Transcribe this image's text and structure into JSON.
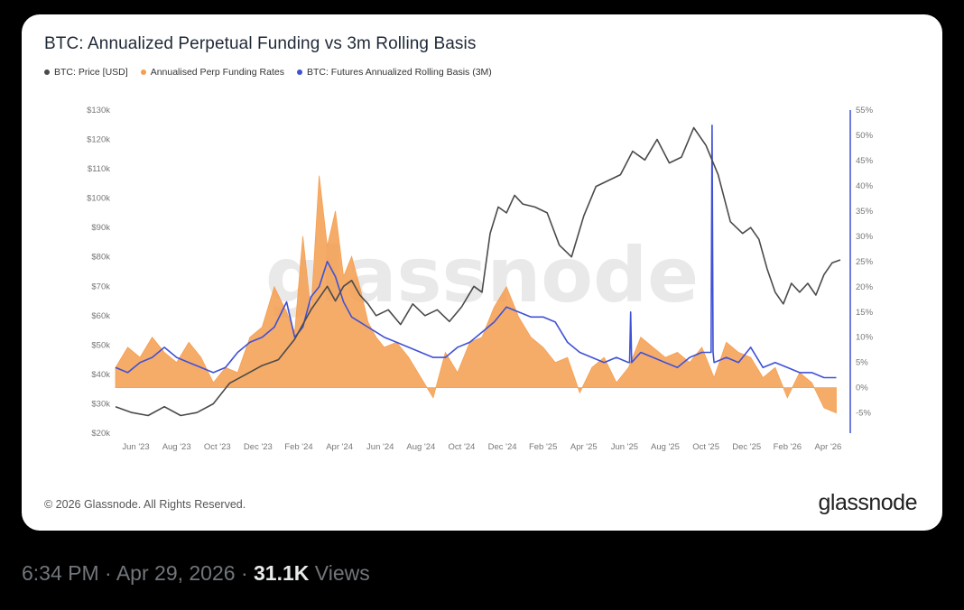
{
  "post": {
    "time": "6:34 PM",
    "date": "Apr 29, 2026",
    "separator": "·",
    "views_count": "31.1K",
    "views_label": "Views"
  },
  "card": {
    "copyright": "© 2026 Glassnode. All Rights Reserved.",
    "brand": "glassnode",
    "watermark": "glassnode"
  },
  "colors": {
    "price": "#4a4a4a",
    "funding": "#f59e4f",
    "basis": "#3f51d6",
    "right_axis": "#3f51d6"
  },
  "chart_data": {
    "type": "line",
    "title": "BTC: Annualized Perpetual Funding vs 3m Rolling Basis",
    "legend": [
      {
        "name": "BTC: Price [USD]",
        "color": "#4a4a4a"
      },
      {
        "name": "Annualised Perp Funding Rates",
        "color": "#f59e4f"
      },
      {
        "name": "BTC: Futures Annualized Rolling Basis (3M)",
        "color": "#3f51d6"
      }
    ],
    "legend_position": "top-left",
    "grid": false,
    "x_tick_labels": [
      "Jun '23",
      "Aug '23",
      "Oct '23",
      "Dec '23",
      "Feb '24",
      "Apr '24",
      "Jun '24",
      "Aug '24",
      "Oct '24",
      "Dec '24",
      "Feb '25",
      "Apr '25",
      "Jun '25",
      "Aug '25",
      "Oct '25",
      "Dec '25",
      "Feb '26",
      "Apr '26"
    ],
    "x_range": [
      0,
      36
    ],
    "y_left": {
      "range": [
        20000,
        130000
      ],
      "tick_values": [
        20000,
        30000,
        40000,
        50000,
        60000,
        70000,
        80000,
        90000,
        100000,
        110000,
        120000,
        130000
      ],
      "tick_labels": [
        "$20k",
        "$30k",
        "$40k",
        "$50k",
        "$60k",
        "$70k",
        "$80k",
        "$90k",
        "$100k",
        "$110k",
        "$120k",
        "$130k"
      ]
    },
    "y_right": {
      "range": [
        -9,
        55
      ],
      "tick_values": [
        -5,
        0,
        5,
        10,
        15,
        20,
        25,
        30,
        35,
        40,
        45,
        50,
        55
      ],
      "tick_labels": [
        "-5%",
        "0%",
        "5%",
        "10%",
        "15%",
        "20%",
        "25%",
        "30%",
        "35%",
        "40%",
        "45%",
        "50%",
        "55%"
      ]
    },
    "x_units": "months since May 2023",
    "series": [
      {
        "name": "BTC: Price [USD]",
        "axis": "left",
        "x": [
          0,
          0.8,
          1.6,
          2.4,
          3.2,
          4,
          4.8,
          5.6,
          6.4,
          7.2,
          8,
          8.8,
          9.6,
          10.4,
          10.8,
          11.2,
          11.6,
          12,
          12.4,
          12.8,
          13.4,
          14,
          14.6,
          15.2,
          15.8,
          16.4,
          17,
          17.6,
          18,
          18.4,
          18.8,
          19.2,
          19.6,
          20,
          20.6,
          21.2,
          21.8,
          22.4,
          23,
          23.6,
          24.2,
          24.8,
          25.4,
          26,
          26.6,
          27.2,
          27.8,
          28.4,
          29,
          29.6,
          30.2,
          30.8,
          31.2,
          31.6,
          32,
          32.4,
          32.8,
          33.2,
          33.6,
          34,
          34.4,
          34.8,
          35.2,
          35.6
        ],
        "values": [
          29000,
          27000,
          26000,
          29000,
          26000,
          27000,
          30000,
          37000,
          40000,
          43000,
          45000,
          52000,
          62000,
          70000,
          65000,
          70000,
          72000,
          67000,
          64000,
          60000,
          62000,
          57000,
          64000,
          60000,
          62000,
          58000,
          63000,
          70000,
          68000,
          88000,
          97000,
          95000,
          101000,
          98000,
          97000,
          95000,
          84000,
          80000,
          94000,
          104000,
          106000,
          108000,
          116000,
          113000,
          120000,
          112000,
          114000,
          124000,
          118000,
          108000,
          92000,
          88000,
          90000,
          86000,
          76000,
          68000,
          64000,
          71000,
          68000,
          71000,
          67000,
          74000,
          78000,
          79000
        ]
      },
      {
        "name": "Annualised Perp Funding Rates",
        "axis": "right",
        "x": [
          0,
          0.6,
          1.2,
          1.8,
          2.4,
          3,
          3.6,
          4.2,
          4.8,
          5.4,
          6,
          6.6,
          7.2,
          7.8,
          8.4,
          8.8,
          9.2,
          9.6,
          10,
          10.4,
          10.8,
          11.2,
          11.6,
          12,
          12.4,
          12.8,
          13.2,
          13.8,
          14.4,
          15,
          15.6,
          16.2,
          16.8,
          17.4,
          18,
          18.6,
          19.2,
          19.8,
          20.4,
          21,
          21.6,
          22.2,
          22.8,
          23.4,
          24,
          24.6,
          25.2,
          25.8,
          26.4,
          27,
          27.6,
          28.2,
          28.8,
          29.4,
          30,
          30.6,
          31.2,
          31.8,
          32.4,
          33,
          33.6,
          34.2,
          34.8,
          35.4
        ],
        "values": [
          4,
          8,
          6,
          10,
          7,
          5,
          9,
          6,
          1,
          4,
          3,
          10,
          12,
          20,
          15,
          11,
          30,
          15,
          42,
          28,
          35,
          22,
          26,
          20,
          13,
          10,
          8,
          9,
          6,
          2,
          -2,
          7,
          3,
          9,
          10,
          16,
          20,
          14,
          10,
          8,
          5,
          6,
          -1,
          4,
          6,
          1,
          4,
          10,
          8,
          6,
          7,
          5,
          8,
          2,
          9,
          7,
          6,
          2,
          4,
          -2,
          3,
          1,
          -4,
          -5
        ]
      },
      {
        "name": "BTC: Futures Annualized Rolling Basis (3M)",
        "axis": "right",
        "x": [
          0,
          0.6,
          1.2,
          1.8,
          2.4,
          3,
          3.6,
          4.2,
          4.8,
          5.4,
          6,
          6.6,
          7.2,
          7.8,
          8.4,
          8.8,
          9.2,
          9.6,
          10,
          10.4,
          10.8,
          11.2,
          11.6,
          12,
          12.4,
          12.8,
          13.2,
          13.8,
          14.4,
          15,
          15.6,
          16.2,
          16.8,
          17.4,
          18,
          18.6,
          19.2,
          19.8,
          20.4,
          21,
          21.6,
          22.2,
          22.8,
          23.4,
          24,
          24.6,
          25.2,
          25.8,
          26.4,
          27,
          27.6,
          28.2,
          28.8,
          29.4,
          30,
          30.6,
          31.2,
          31.8,
          32.4,
          33,
          33.6,
          34.2,
          34.8,
          35.4
        ],
        "values": [
          4,
          3,
          5,
          6,
          8,
          6,
          5,
          4,
          3,
          4,
          7,
          9,
          10,
          12,
          17,
          10,
          12,
          18,
          20,
          25,
          22,
          17,
          14,
          13,
          12,
          11,
          10,
          9,
          8,
          7,
          6,
          6,
          8,
          9,
          11,
          13,
          16,
          15,
          14,
          14,
          13,
          9,
          7,
          6,
          5,
          6,
          5,
          7,
          6,
          5,
          4,
          6,
          7,
          5,
          6,
          5,
          8,
          4,
          5,
          4,
          3,
          3,
          2,
          2
        ]
      }
    ],
    "annotations": [
      {
        "type": "spike",
        "series": "BTC: Futures Annualized Rolling Basis (3M)",
        "x": 29.3,
        "value": 52
      },
      {
        "type": "spike",
        "series": "BTC: Futures Annualized Rolling Basis (3M)",
        "x": 25.3,
        "value": 15
      }
    ]
  }
}
